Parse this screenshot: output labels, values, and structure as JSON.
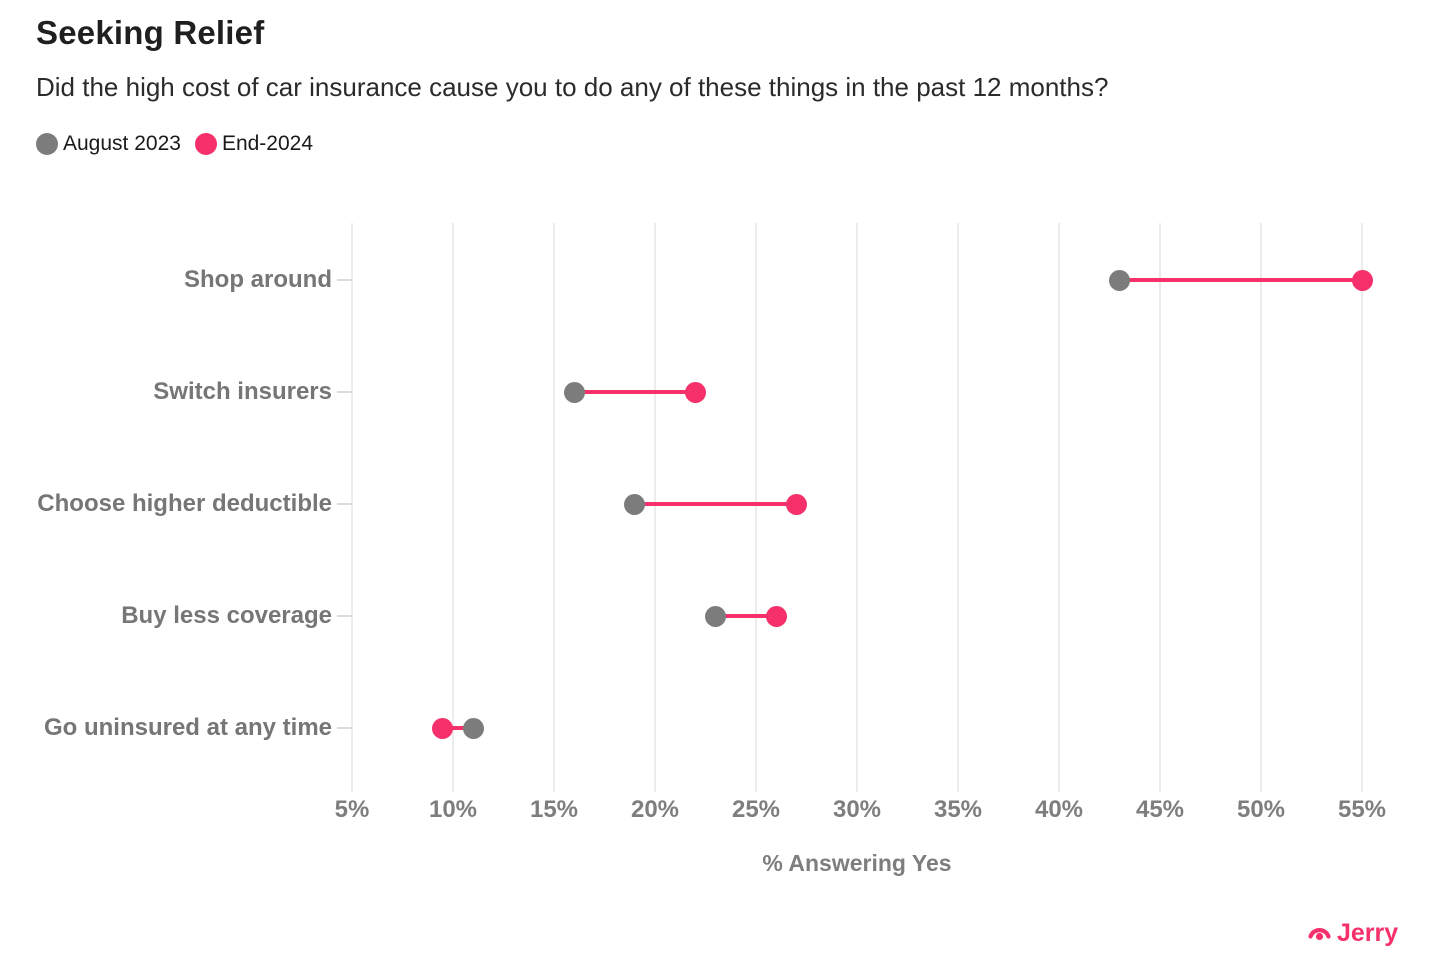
{
  "header": {
    "title": "Seeking Relief",
    "subtitle": "Did the high cost of car insurance cause you to do any of these things in the past 12 months?"
  },
  "legend": [
    {
      "label": "August 2023",
      "color": "#7c7c7c"
    },
    {
      "label": "End-2024",
      "color": "#f5306a"
    }
  ],
  "chart_data": {
    "type": "dumbbell",
    "categories": [
      "Shop around",
      "Switch insurers",
      "Choose higher deductible",
      "Buy less coverage",
      "Go uninsured at any time"
    ],
    "series": [
      {
        "name": "August 2023",
        "color": "#7c7c7c",
        "values": [
          43,
          16,
          19,
          23,
          11
        ]
      },
      {
        "name": "End-2024",
        "color": "#f5306a",
        "values": [
          55,
          22,
          27,
          26,
          9.5
        ]
      }
    ],
    "connector_color": "#f5306a",
    "xlabel": "% Answering Yes",
    "x_ticks": [
      5,
      10,
      15,
      20,
      25,
      30,
      35,
      40,
      45,
      50,
      55
    ],
    "x_tick_labels": [
      "5%",
      "10%",
      "15%",
      "20%",
      "25%",
      "30%",
      "35%",
      "40%",
      "45%",
      "50%",
      "55%"
    ],
    "xlim": [
      5,
      55
    ],
    "grid": "vertical-only",
    "legend_position": "top-left"
  },
  "colors": {
    "title": "#1f1f1f",
    "subtitle": "#2b2b2b",
    "axis_text": "#7e7e7e",
    "category_text": "#767676",
    "gridline": "#ececec",
    "brand_pink": "#f5306a"
  },
  "branding": {
    "logo_text": "Jerry"
  }
}
